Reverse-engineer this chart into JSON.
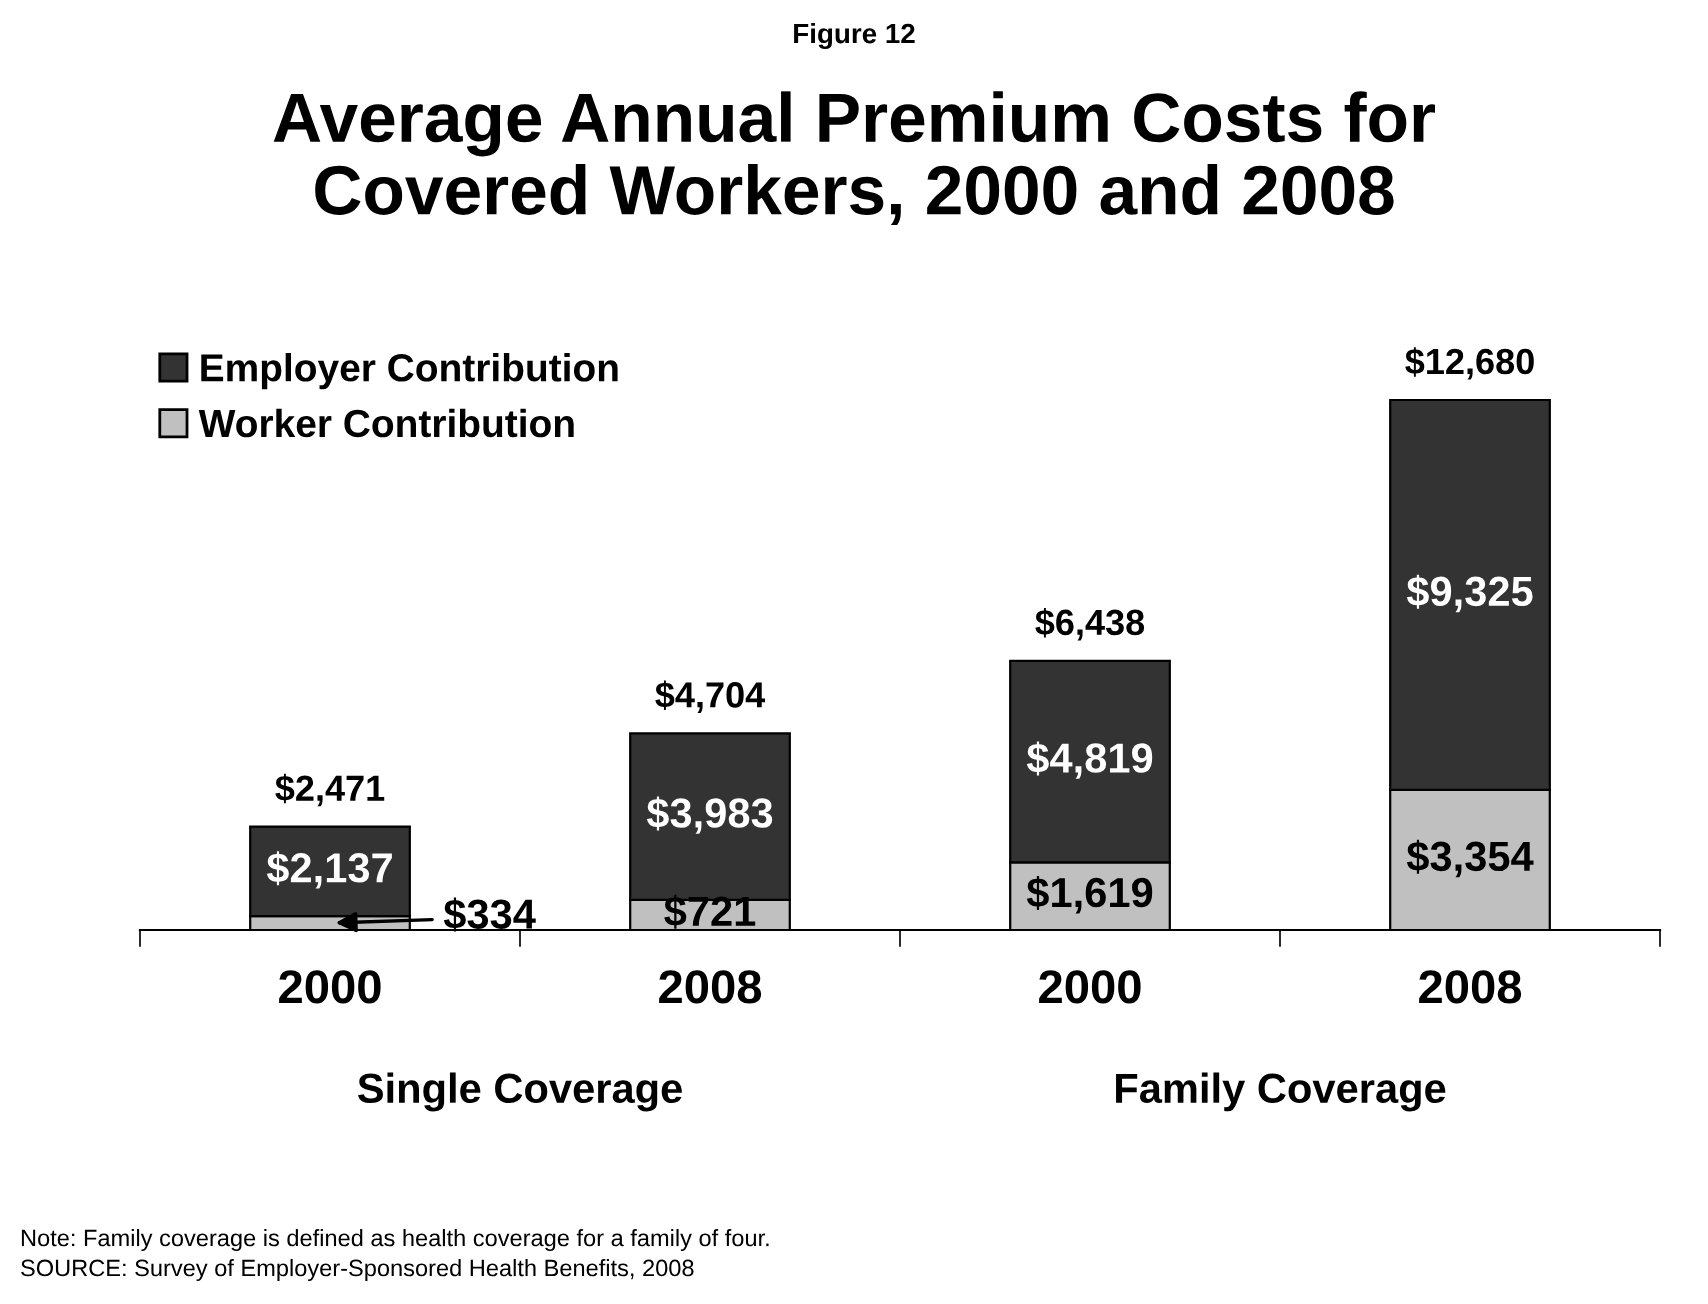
{
  "chart_data": {
    "type": "bar",
    "stacked": true,
    "subtitle": "Figure 12",
    "title": "Average Annual Premium Costs for\nCovered Workers, 2000 and 2008",
    "categories": [
      "2000",
      "2008",
      "2000",
      "2008"
    ],
    "series": [
      {
        "name": "Worker Contribution",
        "color": "#c0c0c0",
        "values": [
          334,
          721,
          1619,
          3354
        ],
        "value_labels": [
          "$334",
          "$721",
          "$1,619",
          "$3,354"
        ]
      },
      {
        "name": "Employer Contribution",
        "color": "#333333",
        "values": [
          2137,
          3983,
          4819,
          9325
        ],
        "value_labels": [
          "$2,137",
          "$3,983",
          "$4,819",
          "$9,325"
        ]
      }
    ],
    "totals": [
      "$2,471",
      "$4,704",
      "$6,438",
      "$12,680"
    ],
    "legend": "top left",
    "grid": false,
    "annotations": [
      "Single Coverage",
      "Family Coverage",
      "Note: Family coverage is defined as health coverage for a family of four.",
      "SOURCE: Survey of Employer-Sponsored Health Benefits, 2008"
    ]
  }
}
